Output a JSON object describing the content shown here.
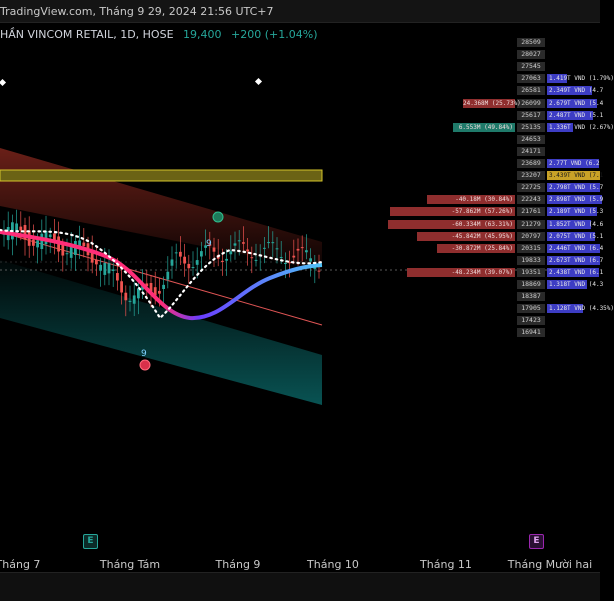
{
  "header": {
    "title": "TradingView.com, Tháng 9 29, 2024 21:56 UTC+7"
  },
  "symbol": {
    "name": "HẦN VINCOM RETAIL, 1D, HOSE",
    "price": "19,400",
    "change": "+200 (+1.04%)"
  },
  "price_ladder": [
    {
      "price": "28509",
      "vol": "",
      "vol_color": "",
      "left": ""
    },
    {
      "price": "28027",
      "vol": "",
      "vol_color": "",
      "left": ""
    },
    {
      "price": "27545",
      "vol": "",
      "vol_color": "",
      "left": ""
    },
    {
      "price": "27063",
      "vol": "1.419T VND (1.79%)",
      "vol_color": "#3d3dc4",
      "left": ""
    },
    {
      "price": "26581",
      "vol": "2.349T VND (4.7",
      "vol_color": "#3d3dc4",
      "left": ""
    },
    {
      "price": "26099",
      "vol": "2.679T VND (5.4",
      "vol_color": "#3d3dc4",
      "left": "24.368M (25.73%)"
    },
    {
      "price": "25617",
      "vol": "2.487T VND (5.1",
      "vol_color": "#3d3dc4",
      "left": ""
    },
    {
      "price": "25135",
      "vol": "1.336T VND (2.67%)",
      "vol_color": "#3d3dc4",
      "left": "6.553M (49.84%)"
    },
    {
      "price": "24653",
      "vol": "",
      "vol_color": "",
      "left": ""
    },
    {
      "price": "24171",
      "vol": "",
      "vol_color": "",
      "left": ""
    },
    {
      "price": "23689",
      "vol": "2.77T VND (6.2",
      "vol_color": "#3d3dc4",
      "left": ""
    },
    {
      "price": "23207",
      "vol": "3.439T VND (7.1",
      "vol_color": "#c9a227",
      "left": ""
    },
    {
      "price": "22725",
      "vol": "2.798T VND (5.7",
      "vol_color": "#3d3dc4",
      "left": ""
    },
    {
      "price": "22243",
      "vol": "2.898T VND (5.9",
      "vol_color": "#3d3dc4",
      "left": "-40.18M (30.84%)"
    },
    {
      "price": "21761",
      "vol": "2.189T VND (5.3",
      "vol_color": "#3d3dc4",
      "left": "-57.862M (57.26%)"
    },
    {
      "price": "21279",
      "vol": "1.852T VND (4.6",
      "vol_color": "#3d3dc4",
      "left": "-60.334M (63.31%)"
    },
    {
      "price": "20797",
      "vol": "2.075T VND (5.1",
      "vol_color": "#3d3dc4",
      "left": "-45.842M (45.95%)"
    },
    {
      "price": "20315",
      "vol": "2.446T VND (6.4",
      "vol_color": "#3d3dc4",
      "left": "-30.872M (25.84%)"
    },
    {
      "price": "19833",
      "vol": "2.673T VND (6.7",
      "vol_color": "#3d3dc4",
      "left": ""
    },
    {
      "price": "19351",
      "vol": "2.438T VND (6.1",
      "vol_color": "#3d3dc4",
      "left": "-48.234M (39.07%)"
    },
    {
      "price": "18869",
      "vol": "1.318T VND (4.3",
      "vol_color": "#3d3dc4",
      "left": ""
    },
    {
      "price": "18387",
      "vol": "",
      "vol_color": "",
      "left": ""
    },
    {
      "price": "17905",
      "vol": "1.128T VND (4.35%)",
      "vol_color": "#3d3dc4",
      "left": ""
    },
    {
      "price": "17423",
      "vol": "",
      "vol_color": "",
      "left": ""
    },
    {
      "price": "16941",
      "vol": "",
      "vol_color": "",
      "left": ""
    }
  ],
  "x_axis": [
    "Tháng 7",
    "Tháng Tám",
    "Tháng 9",
    "Tháng 10",
    "Tháng 11",
    "Tháng Mười hai"
  ],
  "event_badges": [
    {
      "label": "E",
      "color": "#26a69a"
    },
    {
      "label": "E",
      "color": "#9c27b0"
    }
  ],
  "signal_labels": [
    "9",
    "9"
  ],
  "colors": {
    "bull": "#26a69a",
    "bear": "#ef5350",
    "background": "#000000"
  }
}
